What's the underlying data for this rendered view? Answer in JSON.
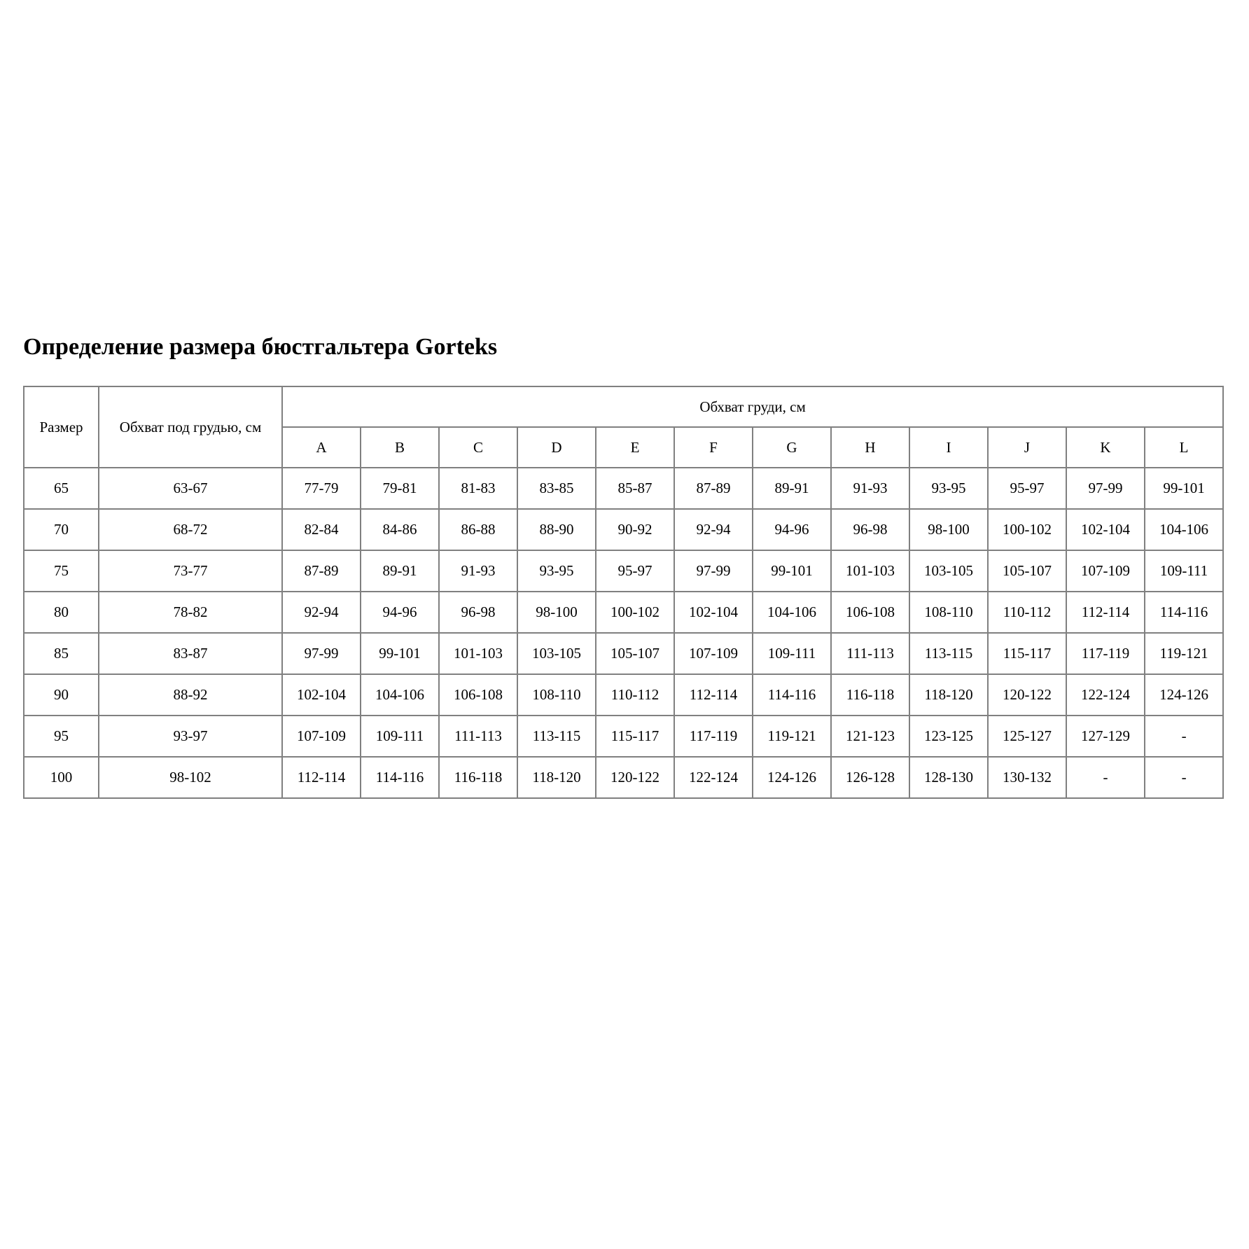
{
  "page": {
    "title": "Определение размера бюстгальтера Gorteks"
  },
  "table": {
    "header": {
      "size_label": "Размер",
      "underbust_label": "Обхват под грудью, см",
      "bust_label": "Обхват груди, см",
      "cup_columns": [
        "A",
        "B",
        "C",
        "D",
        "E",
        "F",
        "G",
        "H",
        "I",
        "J",
        "K",
        "L"
      ]
    },
    "rows": [
      {
        "size": "65",
        "underbust": "63-67",
        "cups": [
          "77-79",
          "79-81",
          "81-83",
          "83-85",
          "85-87",
          "87-89",
          "89-91",
          "91-93",
          "93-95",
          "95-97",
          "97-99",
          "99-101"
        ]
      },
      {
        "size": "70",
        "underbust": "68-72",
        "cups": [
          "82-84",
          "84-86",
          "86-88",
          "88-90",
          "90-92",
          "92-94",
          "94-96",
          "96-98",
          "98-100",
          "100-102",
          "102-104",
          "104-106"
        ]
      },
      {
        "size": "75",
        "underbust": "73-77",
        "cups": [
          "87-89",
          "89-91",
          "91-93",
          "93-95",
          "95-97",
          "97-99",
          "99-101",
          "101-103",
          "103-105",
          "105-107",
          "107-109",
          "109-111"
        ]
      },
      {
        "size": "80",
        "underbust": "78-82",
        "cups": [
          "92-94",
          "94-96",
          "96-98",
          "98-100",
          "100-102",
          "102-104",
          "104-106",
          "106-108",
          "108-110",
          "110-112",
          "112-114",
          "114-116"
        ]
      },
      {
        "size": "85",
        "underbust": "83-87",
        "cups": [
          "97-99",
          "99-101",
          "101-103",
          "103-105",
          "105-107",
          "107-109",
          "109-111",
          "111-113",
          "113-115",
          "115-117",
          "117-119",
          "119-121"
        ]
      },
      {
        "size": "90",
        "underbust": "88-92",
        "cups": [
          "102-104",
          "104-106",
          "106-108",
          "108-110",
          "110-112",
          "112-114",
          "114-116",
          "116-118",
          "118-120",
          "120-122",
          "122-124",
          "124-126"
        ]
      },
      {
        "size": "95",
        "underbust": "93-97",
        "cups": [
          "107-109",
          "109-111",
          "111-113",
          "113-115",
          "115-117",
          "117-119",
          "119-121",
          "121-123",
          "123-125",
          "125-127",
          "127-129",
          "-"
        ]
      },
      {
        "size": "100",
        "underbust": "98-102",
        "cups": [
          "112-114",
          "114-116",
          "116-118",
          "118-120",
          "120-122",
          "122-124",
          "124-126",
          "126-128",
          "128-130",
          "130-132",
          "-",
          "-"
        ]
      }
    ],
    "colors": {
      "border": "#808080",
      "text": "#000000",
      "background": "#ffffff"
    }
  }
}
